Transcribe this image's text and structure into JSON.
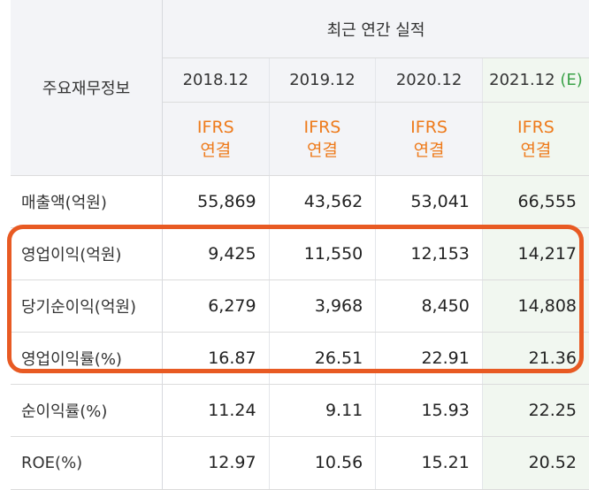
{
  "header": {
    "section_label": "주요재무정보",
    "group_title": "최근 연간 실적",
    "years": [
      {
        "label": "2018.12",
        "suffix": ""
      },
      {
        "label": "2019.12",
        "suffix": ""
      },
      {
        "label": "2020.12",
        "suffix": ""
      },
      {
        "label": "2021.12",
        "suffix": "(E)"
      }
    ],
    "ifrs": [
      {
        "line1": "IFRS",
        "line2": "연결"
      },
      {
        "line1": "IFRS",
        "line2": "연결"
      },
      {
        "line1": "IFRS",
        "line2": "연결"
      },
      {
        "line1": "IFRS",
        "line2": "연결"
      }
    ]
  },
  "rows": [
    {
      "label": "매출액(억원)",
      "values": [
        "55,869",
        "43,562",
        "53,041",
        "66,555"
      ]
    },
    {
      "label": "영업이익(억원)",
      "values": [
        "9,425",
        "11,550",
        "12,153",
        "14,217"
      ]
    },
    {
      "label": "당기순이익(억원)",
      "values": [
        "6,279",
        "3,968",
        "8,450",
        "14,808"
      ]
    },
    {
      "label": "영업이익률(%)",
      "values": [
        "16.87",
        "26.51",
        "22.91",
        "21.36"
      ]
    },
    {
      "label": "순이익률(%)",
      "values": [
        "11.24",
        "9.11",
        "15.93",
        "22.25"
      ]
    },
    {
      "label": "ROE(%)",
      "values": [
        "12.97",
        "10.56",
        "15.21",
        "20.52"
      ]
    }
  ],
  "colors": {
    "ifrs_orange": "#ee7b1c",
    "estimate_green": "#3aa248",
    "highlight_box": "#e85a23",
    "estimate_column_bg": "#f1f7f0"
  }
}
